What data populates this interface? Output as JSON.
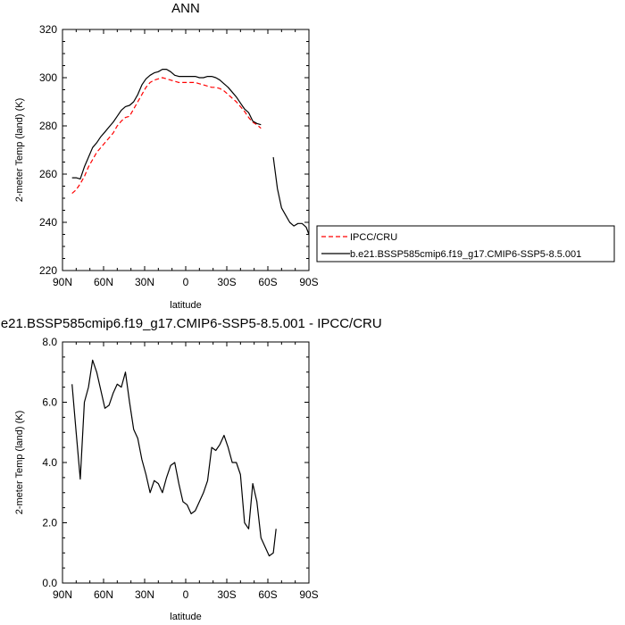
{
  "chart_data": [
    {
      "type": "line",
      "title": "ANN",
      "xlabel": "latitude",
      "ylabel": "2-meter Temp (land) (K)",
      "xlim": [
        90,
        -90
      ],
      "ylim": [
        220,
        320
      ],
      "x_ticks": [
        90,
        60,
        30,
        0,
        -30,
        -60,
        -90
      ],
      "x_tick_labels": [
        "90N",
        "60N",
        "30N",
        "0",
        "30S",
        "60S",
        "90S"
      ],
      "y_ticks": [
        220,
        240,
        260,
        280,
        300,
        320
      ],
      "y_tick_labels": [
        "220",
        "240",
        "260",
        "280",
        "300",
        "320"
      ],
      "grid": false,
      "legend_position": "right",
      "series": [
        {
          "name": "IPCC/CRU",
          "color": "#ff0000",
          "dash": true,
          "segments": [
            [
              [
                83,
                252
              ],
              [
                80,
                253.5
              ],
              [
                77,
                256
              ],
              [
                74,
                259
              ],
              [
                71,
                263
              ],
              [
                68,
                266
              ],
              [
                65,
                269
              ],
              [
                62,
                271
              ],
              [
                59,
                273
              ],
              [
                56,
                275
              ],
              [
                53,
                277
              ],
              [
                50,
                280
              ],
              [
                47,
                282
              ],
              [
                44,
                283.5
              ],
              [
                41,
                284
              ],
              [
                38,
                287
              ],
              [
                35,
                290
              ],
              [
                32,
                293
              ],
              [
                29,
                296
              ],
              [
                26,
                298
              ],
              [
                23,
                299
              ],
              [
                20,
                299.5
              ],
              [
                17,
                300
              ],
              [
                14,
                299.5
              ],
              [
                11,
                299
              ],
              [
                8,
                298.5
              ],
              [
                5,
                298
              ],
              [
                2,
                298
              ],
              [
                -1,
                298
              ],
              [
                -4,
                298
              ],
              [
                -7,
                298
              ],
              [
                -10,
                297.5
              ],
              [
                -13,
                297
              ],
              [
                -16,
                296.5
              ],
              [
                -19,
                296
              ],
              [
                -22,
                296
              ],
              [
                -25,
                295.5
              ],
              [
                -28,
                294.5
              ],
              [
                -31,
                293
              ],
              [
                -34,
                291.5
              ],
              [
                -37,
                290
              ],
              [
                -40,
                288
              ],
              [
                -43,
                286
              ],
              [
                -46,
                283.5
              ],
              [
                -49,
                281.5
              ],
              [
                -52,
                280.5
              ],
              [
                -55,
                279
              ]
            ]
          ]
        },
        {
          "name": "b.e21.BSSP585cmip6.f19_g17.CMIP6-SSP5-8.5.001",
          "color": "#000000",
          "dash": false,
          "segments": [
            [
              [
                83,
                258.5
              ],
              [
                80,
                258.5
              ],
              [
                77,
                258
              ],
              [
                74,
                263
              ],
              [
                71,
                267
              ],
              [
                68,
                271
              ],
              [
                65,
                273
              ],
              [
                62,
                275.5
              ],
              [
                59,
                277.5
              ],
              [
                56,
                279.5
              ],
              [
                53,
                281.5
              ],
              [
                50,
                284
              ],
              [
                47,
                286.5
              ],
              [
                44,
                288
              ],
              [
                41,
                288.5
              ],
              [
                38,
                290
              ],
              [
                35,
                293
              ],
              [
                32,
                297
              ],
              [
                29,
                299.5
              ],
              [
                26,
                301
              ],
              [
                23,
                302
              ],
              [
                20,
                302.5
              ],
              [
                17,
                303.5
              ],
              [
                14,
                303.5
              ],
              [
                11,
                302.5
              ],
              [
                8,
                301
              ],
              [
                5,
                300.5
              ],
              [
                2,
                300.5
              ],
              [
                -1,
                300.5
              ],
              [
                -4,
                300.5
              ],
              [
                -7,
                300.5
              ],
              [
                -10,
                300
              ],
              [
                -13,
                300
              ],
              [
                -16,
                300.5
              ],
              [
                -19,
                300.5
              ],
              [
                -22,
                300
              ],
              [
                -25,
                299
              ],
              [
                -28,
                297.5
              ],
              [
                -31,
                296
              ],
              [
                -34,
                294
              ],
              [
                -37,
                292
              ],
              [
                -40,
                289.5
              ],
              [
                -43,
                287
              ],
              [
                -46,
                285.5
              ],
              [
                -49,
                282
              ],
              [
                -52,
                281
              ],
              [
                -55,
                280.5
              ]
            ],
            [
              [
                -64,
                267
              ],
              [
                -67,
                254
              ],
              [
                -70,
                246
              ],
              [
                -73,
                243
              ],
              [
                -76,
                240
              ],
              [
                -79,
                238.5
              ],
              [
                -82,
                239.5
              ],
              [
                -85,
                239.5
              ],
              [
                -88,
                238
              ],
              [
                -90,
                235
              ],
              [
                -93,
                230
              ],
              [
                -96,
                229.5
              ]
            ]
          ]
        }
      ]
    },
    {
      "type": "line",
      "title": "b.e21.BSSP585cmip6.f19_g17.CMIP6-SSP5-8.5.001 - IPCC/CRU",
      "xlabel": "latitude",
      "ylabel": "2-meter Temp (land) (K)",
      "xlim": [
        90,
        -90
      ],
      "ylim": [
        0,
        8
      ],
      "x_ticks": [
        90,
        60,
        30,
        0,
        -30,
        -60,
        -90
      ],
      "x_tick_labels": [
        "90N",
        "60N",
        "30N",
        "0",
        "30S",
        "60S",
        "90S"
      ],
      "y_ticks": [
        0,
        2,
        4,
        6,
        8
      ],
      "y_tick_labels": [
        "0.0",
        "2.0",
        "4.0",
        "6.0",
        "8.0"
      ],
      "grid": false,
      "series": [
        {
          "color": "#000000",
          "dash": false,
          "segments": [
            [
              [
                83,
                6.6
              ],
              [
                80,
                5.0
              ],
              [
                77,
                3.45
              ],
              [
                74,
                6.0
              ],
              [
                71,
                6.5
              ],
              [
                68,
                7.4
              ],
              [
                65,
                7.0
              ],
              [
                62,
                6.4
              ],
              [
                59,
                5.8
              ],
              [
                56,
                5.9
              ],
              [
                53,
                6.3
              ],
              [
                50,
                6.6
              ],
              [
                47,
                6.5
              ],
              [
                44,
                7.0
              ],
              [
                41,
                6.0
              ],
              [
                38,
                5.1
              ],
              [
                35,
                4.8
              ],
              [
                32,
                4.1
              ],
              [
                29,
                3.6
              ],
              [
                26,
                3.0
              ],
              [
                23,
                3.4
              ],
              [
                20,
                3.3
              ],
              [
                17,
                3.0
              ],
              [
                14,
                3.5
              ],
              [
                11,
                3.9
              ],
              [
                8,
                4.0
              ],
              [
                5,
                3.3
              ],
              [
                2,
                2.7
              ],
              [
                -1,
                2.6
              ],
              [
                -4,
                2.3
              ],
              [
                -7,
                2.4
              ],
              [
                -10,
                2.7
              ],
              [
                -13,
                3.0
              ],
              [
                -16,
                3.4
              ],
              [
                -19,
                4.5
              ],
              [
                -22,
                4.4
              ],
              [
                -25,
                4.6
              ],
              [
                -28,
                4.9
              ],
              [
                -31,
                4.5
              ],
              [
                -34,
                4.0
              ],
              [
                -37,
                4.0
              ],
              [
                -40,
                3.6
              ],
              [
                -43,
                2.0
              ],
              [
                -46,
                1.8
              ],
              [
                -49,
                3.3
              ],
              [
                -52,
                2.7
              ],
              [
                -55,
                1.5
              ],
              [
                -58,
                1.2
              ],
              [
                -61,
                0.9
              ],
              [
                -64,
                1.0
              ],
              [
                -66,
                1.8
              ]
            ]
          ]
        }
      ]
    }
  ]
}
